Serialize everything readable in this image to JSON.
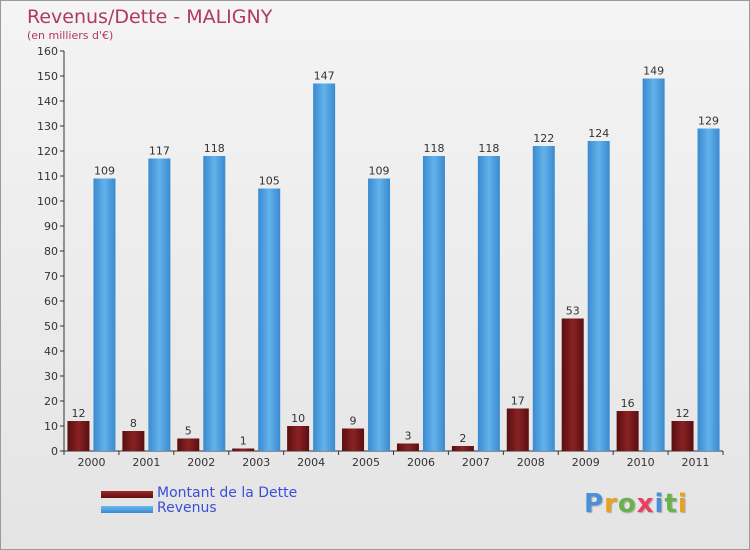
{
  "colors": {
    "dette": "#7a1a1c",
    "revenus": "#4a9fe0",
    "title": "#b03a5a",
    "legend_text": "#3a4ed8"
  },
  "chart_data": {
    "type": "bar",
    "title": "Revenus/Dette - MALIGNY",
    "subtitle": "(en milliers d'€)",
    "categories": [
      "2000",
      "2001",
      "2002",
      "2003",
      "2004",
      "2005",
      "2006",
      "2007",
      "2008",
      "2009",
      "2010",
      "2011"
    ],
    "series": [
      {
        "name": "Montant de la Dette",
        "values": [
          12,
          8,
          5,
          1,
          10,
          9,
          3,
          2,
          17,
          53,
          16,
          12
        ]
      },
      {
        "name": "Revenus",
        "values": [
          109,
          117,
          118,
          105,
          147,
          109,
          118,
          118,
          122,
          124,
          149,
          129
        ]
      }
    ],
    "ylim": [
      0,
      160
    ],
    "yticks": [
      0,
      10,
      20,
      30,
      40,
      50,
      60,
      70,
      80,
      90,
      100,
      110,
      120,
      130,
      140,
      150,
      160
    ],
    "grid": false,
    "legend": "bottom-left"
  },
  "logo": {
    "letters": [
      "P",
      "r",
      "o",
      "x",
      "i",
      "t",
      "i"
    ],
    "colors": [
      "#4a8fd8",
      "#e8a020",
      "#6ab04c",
      "#e84060",
      "#4a8fd8",
      "#6ab04c",
      "#e8a020"
    ]
  }
}
